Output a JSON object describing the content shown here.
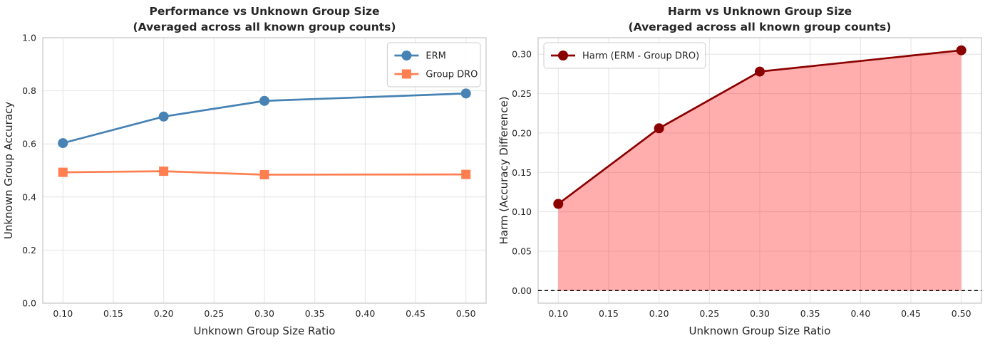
{
  "figure": {
    "background": "#ffffff",
    "text_color": "#262626",
    "grid_color": "#e4e4e4",
    "spine_color": "#c9c9c9",
    "zero_line_color": "#000000"
  },
  "chart_data": [
    {
      "type": "line",
      "title": "Performance vs Unknown Group Size",
      "subtitle": "(Averaged across all known group counts)",
      "xlabel": "Unknown Group Size Ratio",
      "ylabel": "Unknown Group Accuracy",
      "x": [
        0.1,
        0.2,
        0.3,
        0.5
      ],
      "series": [
        {
          "name": "ERM",
          "color": "#4682B4",
          "marker": "circle",
          "values": [
            0.603,
            0.703,
            0.762,
            0.79
          ]
        },
        {
          "name": "Group DRO",
          "color": "#FF7F50",
          "marker": "square",
          "values": [
            0.493,
            0.497,
            0.484,
            0.485
          ]
        }
      ],
      "xlim": [
        0.08,
        0.52
      ],
      "ylim": [
        0.0,
        1.0
      ],
      "xticks": [
        0.1,
        0.15,
        0.2,
        0.25,
        0.3,
        0.35,
        0.4,
        0.45,
        0.5
      ],
      "yticks": [
        0.0,
        0.2,
        0.4,
        0.6,
        0.8,
        1.0
      ],
      "xtick_decimals": 2,
      "ytick_decimals": 1,
      "grid": true,
      "legend_pos": "top-right",
      "zero_line": false
    },
    {
      "type": "line-area",
      "title": "Harm vs Unknown Group Size",
      "subtitle": "(Averaged across all known group counts)",
      "xlabel": "Unknown Group Size Ratio",
      "ylabel": "Harm (Accuracy Difference)",
      "x": [
        0.1,
        0.2,
        0.3,
        0.5
      ],
      "series": [
        {
          "name": "Harm (ERM - Group DRO)",
          "color": "#8B0000",
          "marker": "circle",
          "values": [
            0.11,
            0.206,
            0.278,
            0.305
          ],
          "fill": "#FF0000",
          "fill_opacity": 0.32,
          "fill_to": 0.0
        }
      ],
      "xlim": [
        0.08,
        0.52
      ],
      "ylim": [
        -0.016,
        0.321
      ],
      "xticks": [
        0.1,
        0.15,
        0.2,
        0.25,
        0.3,
        0.35,
        0.4,
        0.45,
        0.5
      ],
      "yticks": [
        0.0,
        0.05,
        0.1,
        0.15,
        0.2,
        0.25,
        0.3
      ],
      "xtick_decimals": 2,
      "ytick_decimals": 2,
      "grid": true,
      "legend_pos": "top-left",
      "zero_line": true
    }
  ]
}
